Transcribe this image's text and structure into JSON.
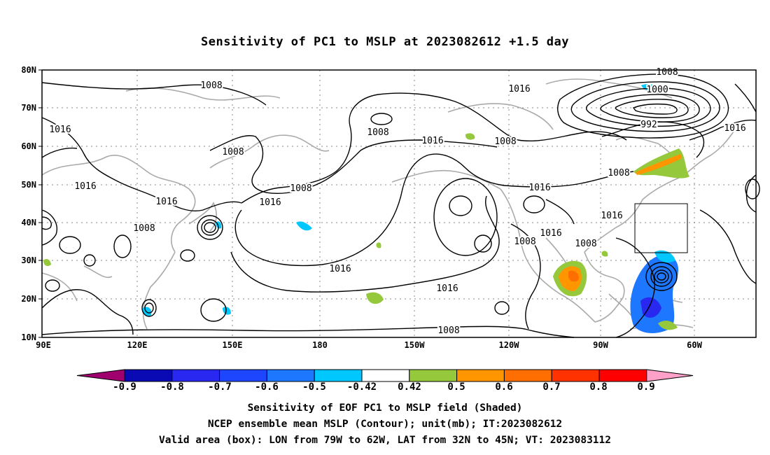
{
  "title": "Sensitivity of PC1 to MSLP at 2023082612 +1.5 day",
  "captions": [
    "Sensitivity of EOF PC1 to MSLP field (Shaded)",
    "NCEP ensemble mean MSLP (Contour); unit(mb); IT:2023082612",
    "Valid area (box): LON from 79W to 62W, LAT from 32N to 45N; VT: 2023083112"
  ],
  "lat_labels": [
    "80N",
    "70N",
    "60N",
    "50N",
    "40N",
    "30N",
    "20N",
    "10N"
  ],
  "lon_labels": [
    "90E",
    "120E",
    "150E",
    "180",
    "150W",
    "120W",
    "90W",
    "60W"
  ],
  "colorbar": {
    "labels": [
      "-0.9",
      "-0.8",
      "-0.7",
      "-0.6",
      "-0.5",
      "-0.42",
      "0.42",
      "0.5",
      "0.6",
      "0.7",
      "0.8",
      "0.9"
    ],
    "colors": [
      "#a0006e",
      "#0a0ab4",
      "#2828f0",
      "#1e46ff",
      "#1e78ff",
      "#00c8ff",
      "#ffffff",
      "#96c83c",
      "#ff9600",
      "#ff6e00",
      "#ff3200",
      "#ff0000",
      "#ffa0c8"
    ]
  },
  "contour_labels": [
    {
      "text": "1008"
    },
    {
      "text": "1016"
    },
    {
      "text": "1008"
    },
    {
      "text": "1016"
    },
    {
      "text": "1016"
    },
    {
      "text": "1008"
    },
    {
      "text": "1008"
    },
    {
      "text": "1016"
    },
    {
      "text": "1008"
    },
    {
      "text": "1016"
    },
    {
      "text": "1016"
    },
    {
      "text": "1008"
    },
    {
      "text": "1016"
    },
    {
      "text": "1016"
    },
    {
      "text": "1016"
    },
    {
      "text": "1008"
    },
    {
      "text": "1008"
    },
    {
      "text": "1008"
    },
    {
      "text": "1000"
    },
    {
      "text": "992"
    },
    {
      "text": "1016"
    },
    {
      "text": "1008"
    },
    {
      "text": "1016"
    }
  ]
}
